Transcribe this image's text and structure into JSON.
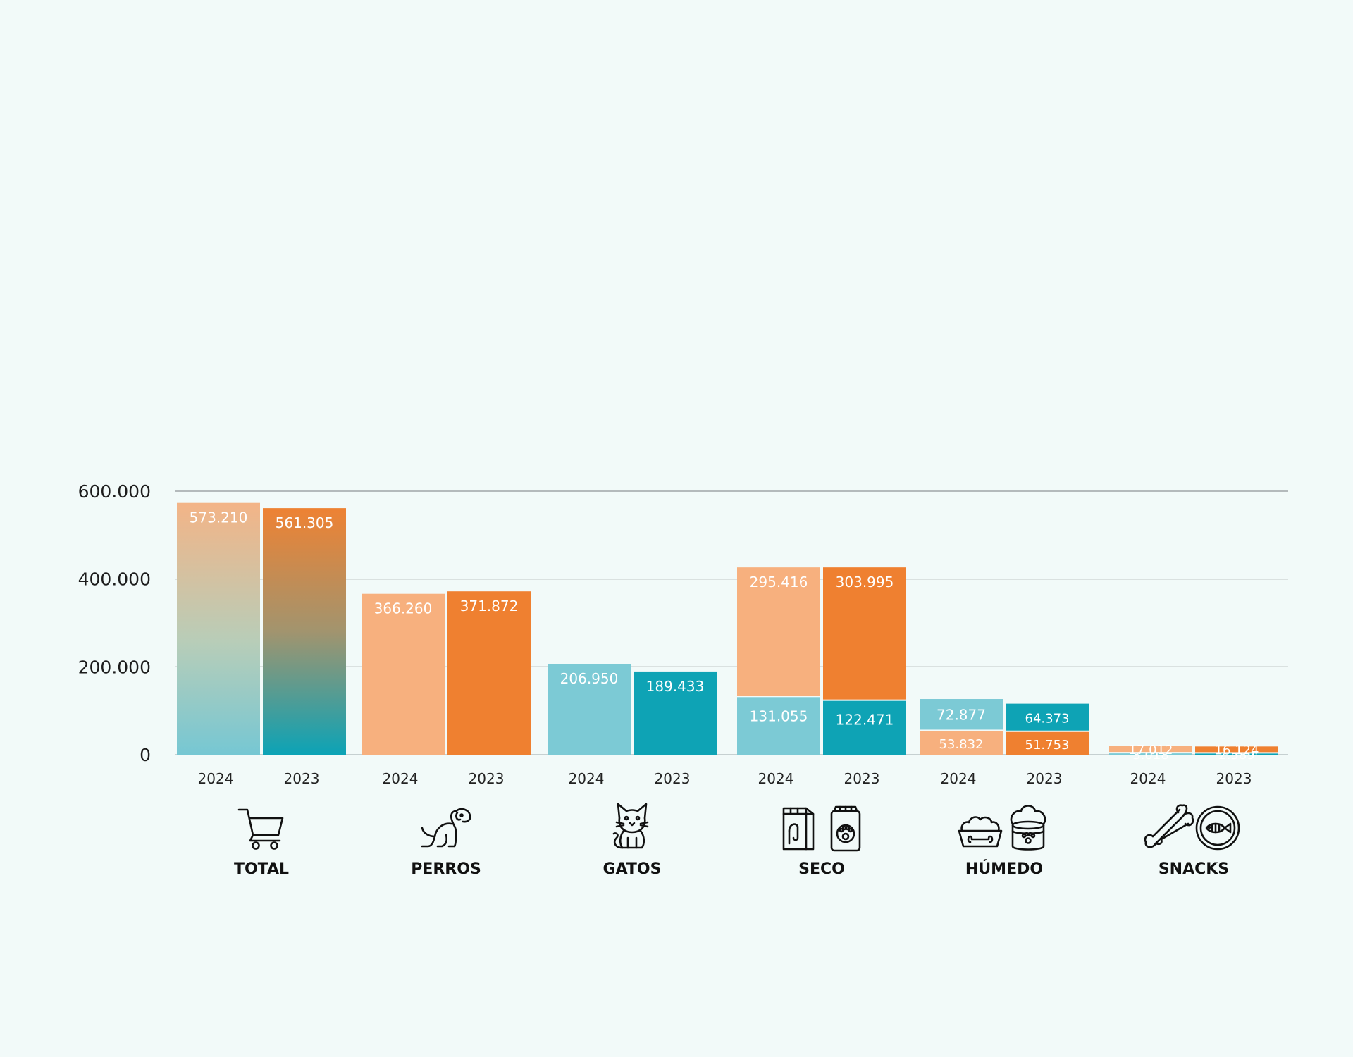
{
  "chart_data": {
    "type": "bar",
    "title": "",
    "xlabel": "",
    "ylabel": "",
    "ylim": [
      0,
      600000
    ],
    "yticks": [
      {
        "value": 0,
        "label": "0"
      },
      {
        "value": 200000,
        "label": "200.000"
      },
      {
        "value": 400000,
        "label": "400.000"
      },
      {
        "value": 600000,
        "label": "600.000"
      }
    ],
    "grid": true,
    "legend": "none",
    "colors": {
      "light_orange": "#f7b07e",
      "orange": "#ef8030",
      "light_teal": "#7ccad5",
      "teal": "#0ea3b5"
    },
    "groups": [
      {
        "name": "TOTAL",
        "icons": [
          "shopping-cart-icon"
        ],
        "bars": [
          {
            "year": "2024",
            "style": "gradient-light",
            "segments": [
              {
                "value": 573210,
                "label": "573.210"
              }
            ]
          },
          {
            "year": "2023",
            "style": "gradient-dark",
            "segments": [
              {
                "value": 561305,
                "label": "561.305"
              }
            ]
          }
        ]
      },
      {
        "name": "PERROS",
        "icons": [
          "dog-icon"
        ],
        "bars": [
          {
            "year": "2024",
            "segments": [
              {
                "value": 366260,
                "label": "366.260",
                "color": "light_orange"
              }
            ]
          },
          {
            "year": "2023",
            "segments": [
              {
                "value": 371872,
                "label": "371.872",
                "color": "orange"
              }
            ]
          }
        ]
      },
      {
        "name": "GATOS",
        "icons": [
          "cat-icon"
        ],
        "bars": [
          {
            "year": "2024",
            "segments": [
              {
                "value": 206950,
                "label": "206.950",
                "color": "light_teal"
              }
            ]
          },
          {
            "year": "2023",
            "segments": [
              {
                "value": 189433,
                "label": "189.433",
                "color": "teal"
              }
            ]
          }
        ]
      },
      {
        "name": "SECO",
        "icons": [
          "dry-food-bag-icon",
          "pet-food-pack-icon"
        ],
        "bars": [
          {
            "year": "2024",
            "segments": [
              {
                "value": 131055,
                "label": "131.055",
                "color": "light_teal"
              },
              {
                "value": 295416,
                "label": "295.416",
                "color": "light_orange"
              }
            ]
          },
          {
            "year": "2023",
            "segments": [
              {
                "value": 122471,
                "label": "122.471",
                "color": "teal"
              },
              {
                "value": 303995,
                "label": "303.995",
                "color": "orange"
              }
            ]
          }
        ]
      },
      {
        "name": "HÚMEDO",
        "icons": [
          "food-bowl-icon",
          "pet-food-can-icon"
        ],
        "bars": [
          {
            "year": "2024",
            "segments": [
              {
                "value": 53832,
                "label": "53.832",
                "color": "light_orange"
              },
              {
                "value": 72877,
                "label": "72.877",
                "color": "light_teal"
              }
            ]
          },
          {
            "year": "2023",
            "segments": [
              {
                "value": 51753,
                "label": "51.753",
                "color": "orange"
              },
              {
                "value": 64373,
                "label": "64.373",
                "color": "teal"
              }
            ]
          }
        ]
      },
      {
        "name": "SNACKS",
        "icons": [
          "bone-icon",
          "fish-treat-icon"
        ],
        "bars": [
          {
            "year": "2024",
            "segments": [
              {
                "value": 3018,
                "label": "3.018",
                "color": "light_teal"
              },
              {
                "value": 17012,
                "label": "17.012",
                "color": "light_orange"
              }
            ]
          },
          {
            "year": "2023",
            "segments": [
              {
                "value": 2589,
                "label": "2.589",
                "color": "teal"
              },
              {
                "value": 16124,
                "label": "16.124",
                "color": "orange"
              }
            ]
          }
        ]
      }
    ]
  }
}
